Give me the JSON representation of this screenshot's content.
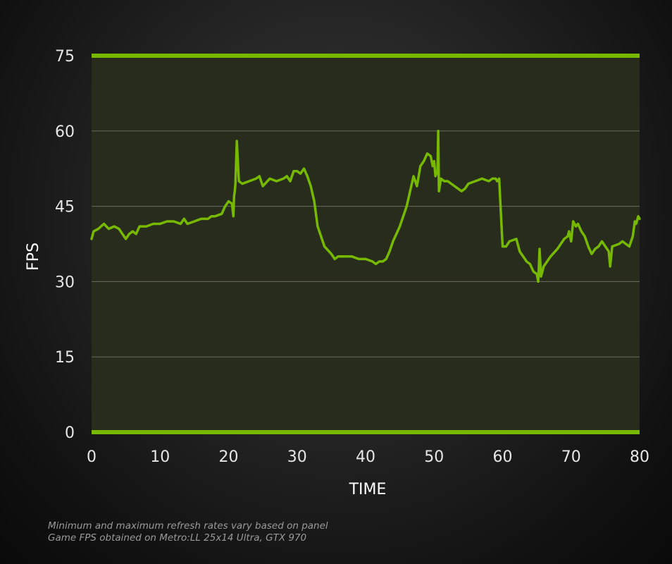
{
  "chart_data": {
    "type": "line",
    "title": "",
    "xlabel": "TIME",
    "ylabel": "FPS",
    "xlim": [
      0,
      80
    ],
    "ylim": [
      0,
      75
    ],
    "xticks": [
      0,
      10,
      20,
      30,
      40,
      50,
      60,
      70,
      80
    ],
    "yticks": [
      0,
      15,
      30,
      45,
      60,
      75
    ],
    "xtick_labels": [
      "0",
      "10",
      "20",
      "30",
      "40",
      "50",
      "60",
      "70",
      "80"
    ],
    "ytick_labels": [
      "0",
      "15",
      "30",
      "45",
      "60",
      "75"
    ],
    "grid": true,
    "legend": "none",
    "bounds": {
      "min_refresh_fps": 0,
      "max_refresh_fps": 75
    },
    "series": [
      {
        "x": [
          0,
          0.3,
          1,
          1.8,
          2.5,
          3.3,
          4,
          4.5,
          5,
          5.5,
          6,
          6.5,
          7,
          8,
          9,
          10,
          11,
          12,
          13,
          13.5,
          14,
          15,
          16,
          17,
          17.5,
          18,
          19,
          19.5,
          20,
          20.5,
          20.7,
          20.8,
          20.9,
          21,
          21.2,
          21.5,
          22,
          23,
          24,
          24.5,
          25,
          26,
          27,
          28,
          28.5,
          29,
          29.5,
          30,
          30.5,
          31,
          31.5,
          32,
          32.5,
          33,
          34,
          35,
          35.5,
          36,
          37,
          38,
          39,
          40,
          41,
          41.5,
          42,
          42.5,
          43,
          43.5,
          44,
          45,
          46,
          46.5,
          47,
          47.5,
          48,
          48.5,
          49,
          49.5,
          49.8,
          50,
          50.2,
          50.5,
          50.6,
          50.7,
          51,
          51.5,
          52,
          52.5,
          53,
          54,
          54.5,
          55,
          56,
          57,
          58,
          58.5,
          59,
          59.2,
          59.5,
          60,
          60.5,
          61,
          62,
          62.5,
          63,
          63.5,
          64,
          64.5,
          65,
          65.2,
          65.4,
          65.6,
          66,
          67,
          68,
          69,
          69.5,
          69.7,
          70,
          70.3,
          70.7,
          71,
          71.5,
          72,
          72.5,
          73,
          73.5,
          74,
          74.5,
          75,
          75.5,
          75.7,
          76,
          77,
          77.5,
          78,
          78.5,
          79,
          79.3,
          79.5,
          79.8,
          80
        ],
        "y": [
          38.5,
          40,
          40.5,
          41.5,
          40.5,
          41,
          40.5,
          39.5,
          38.5,
          39.5,
          40,
          39.5,
          41,
          41,
          41.5,
          41.5,
          42,
          42,
          41.5,
          42.5,
          41.5,
          42,
          42.5,
          42.5,
          43,
          43,
          43.5,
          45,
          46,
          45.5,
          43,
          47,
          48,
          49.5,
          58,
          50,
          49.5,
          50,
          50.5,
          51,
          49,
          50.5,
          50,
          50.5,
          51,
          50,
          52,
          52,
          51.5,
          52.5,
          51,
          49,
          46,
          41,
          37,
          35.5,
          34.5,
          35,
          35,
          35,
          34.5,
          34.5,
          34,
          33.5,
          34,
          34,
          34.5,
          36,
          38,
          41,
          45,
          48,
          51,
          49,
          53,
          54,
          55.5,
          55,
          53,
          54,
          51,
          52,
          60,
          48,
          50.5,
          50,
          50,
          49.5,
          49,
          48,
          48.5,
          49.5,
          50,
          50.5,
          50,
          50.5,
          50.5,
          50,
          50.5,
          37,
          37,
          38,
          38.5,
          36,
          35,
          34,
          33.5,
          32,
          31.5,
          30,
          36.5,
          31,
          33,
          35,
          36.5,
          38.5,
          39,
          40,
          38,
          42,
          41,
          41.5,
          40,
          39,
          37,
          35.5,
          36.5,
          37,
          38,
          37,
          36,
          33,
          37,
          37.5,
          38,
          37.5,
          37,
          39,
          42,
          41.5,
          43,
          42.5
        ]
      }
    ]
  },
  "footnotes": {
    "line1": "Minimum and maximum refresh rates vary based on panel",
    "line2": "Game FPS obtained on Metro:LL 25x14 Ultra, GTX 970"
  },
  "colors": {
    "plot_background": "#272c1d",
    "line": "#76b900",
    "bounds": "#76b900",
    "grid": "#6b6b5e",
    "tick_text": "#e6e6e6",
    "axis_title": "#ffffff",
    "footnote_text": "#9a9a9a"
  }
}
